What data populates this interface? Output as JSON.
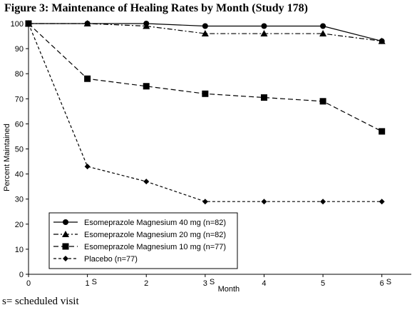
{
  "chart_data": {
    "type": "line",
    "title": "Figure 3: Maintenance of Healing Rates by Month (Study 178)",
    "xlabel": "Month",
    "ylabel": "Percent Maintained",
    "x": [
      0,
      1,
      2,
      3,
      4,
      5,
      6
    ],
    "x_tick_labels": [
      "0",
      "1",
      "2",
      "3",
      "4",
      "5",
      "6"
    ],
    "scheduled_visit_marker": "S",
    "scheduled_visit_months": [
      1,
      3,
      6
    ],
    "y_ticks": [
      0,
      10,
      20,
      30,
      40,
      50,
      60,
      70,
      80,
      90,
      100
    ],
    "xlim": [
      0,
      6.5
    ],
    "ylim": [
      0,
      100
    ],
    "grid": false,
    "legend_position": "bottom-left",
    "series": [
      {
        "name": "Esomeprazole Magnesium 40 mg (n=82)",
        "marker": "circle",
        "dash": "solid",
        "values": [
          100,
          100,
          100,
          99,
          99,
          99,
          93
        ]
      },
      {
        "name": "Esomeprazole Magnesium 20 mg (n=82)",
        "marker": "triangle",
        "dash": "dashdot",
        "values": [
          100,
          100,
          99,
          96,
          96,
          96,
          93
        ]
      },
      {
        "name": "Esomeprazole Magnesium 10 mg (n=77)",
        "marker": "square",
        "dash": "dashed",
        "values": [
          100,
          78,
          75,
          72,
          70.5,
          69,
          57
        ]
      },
      {
        "name": "Placebo (n=77)",
        "marker": "diamond",
        "dash": "finedash",
        "values": [
          100,
          43,
          37,
          29,
          29,
          29,
          29
        ]
      }
    ]
  },
  "footnote": "s= scheduled visit"
}
